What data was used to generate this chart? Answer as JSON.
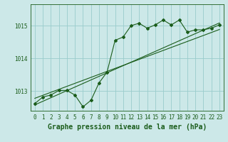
{
  "title": "Graphe pression niveau de la mer (hPa)",
  "background_color": "#cce8e8",
  "grid_color": "#99cccc",
  "line_color": "#1a5c1a",
  "ylim": [
    1012.4,
    1015.65
  ],
  "xlim": [
    -0.5,
    23.5
  ],
  "yticks": [
    1013,
    1014,
    1015
  ],
  "xticks": [
    0,
    1,
    2,
    3,
    4,
    5,
    6,
    7,
    8,
    9,
    10,
    11,
    12,
    13,
    14,
    15,
    16,
    17,
    18,
    19,
    20,
    21,
    22,
    23
  ],
  "series1_x": [
    0,
    1,
    2,
    3,
    4,
    5,
    6,
    7,
    8,
    9,
    10,
    11,
    12,
    13,
    14,
    15,
    16,
    17,
    18,
    19,
    20,
    21,
    22,
    23
  ],
  "series1_y": [
    1012.62,
    1012.82,
    1012.88,
    1013.02,
    1013.02,
    1012.88,
    1012.52,
    1012.72,
    1013.25,
    1013.58,
    1014.55,
    1014.65,
    1015.0,
    1015.07,
    1014.92,
    1015.02,
    1015.17,
    1015.02,
    1015.17,
    1014.8,
    1014.87,
    1014.87,
    1014.92,
    1015.02
  ],
  "series2_x": [
    0,
    23
  ],
  "series2_y": [
    1012.78,
    1014.88
  ],
  "series3_x": [
    0,
    23
  ],
  "series3_y": [
    1012.58,
    1015.08
  ],
  "marker": "D",
  "markersize": 2.0,
  "linewidth": 0.8,
  "title_fontsize": 7,
  "tick_fontsize": 5.5
}
